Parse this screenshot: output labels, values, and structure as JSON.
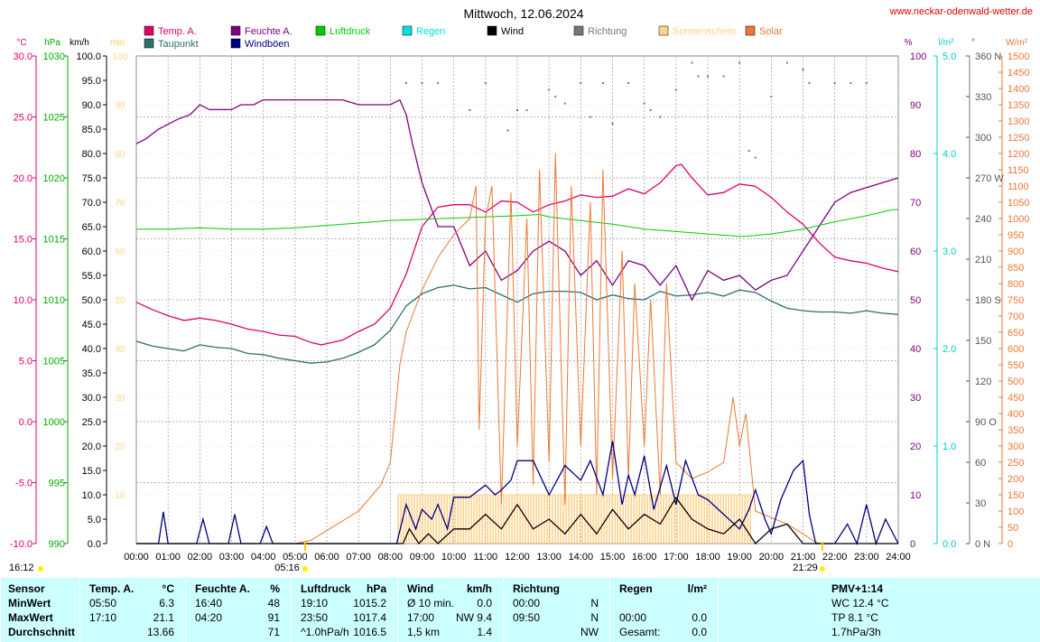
{
  "header": {
    "title": "Mittwoch, 12.06.2024",
    "site": "www.neckar-odenwald-wetter.de"
  },
  "legend": [
    {
      "label": "Temp. A.",
      "color": "#e0006a"
    },
    {
      "label": "Taupunkt",
      "color": "#2e6e6e"
    },
    {
      "label": "Feuchte A.",
      "color": "#800080"
    },
    {
      "label": "Windböen",
      "color": "#000080"
    },
    {
      "label": "Luftdruck",
      "color": "#00cc00"
    },
    {
      "label": "Regen",
      "color": "#00e0e0"
    },
    {
      "label": "Wind",
      "color": "#000000"
    },
    {
      "label": "Richtung",
      "color": "#777777"
    },
    {
      "label": "Sonnenschein",
      "color": "#ffd28a"
    },
    {
      "label": "Solar",
      "color": "#ee7733"
    }
  ],
  "axes": {
    "left_units": [
      "°C",
      "hPa",
      "km/h",
      "min"
    ],
    "right_units": [
      "%",
      "l/m²",
      "°",
      "W/m²"
    ],
    "temp_ticks": [
      "30.0",
      "25.0",
      "20.0",
      "15.0",
      "10.0",
      "5.0",
      "0.0",
      "-5.0",
      "-10.0"
    ],
    "press_ticks": [
      "1030",
      "1025",
      "1020",
      "1015",
      "1010",
      "1005",
      "1000",
      "995",
      "990"
    ],
    "kmh_ticks": [
      "100.0",
      "95.0",
      "90.0",
      "85.0",
      "80.0",
      "75.0",
      "70.0",
      "65.0",
      "60.0",
      "55.0",
      "50.0",
      "45.0",
      "40.0",
      "35.0",
      "30.0",
      "25.0",
      "20.0",
      "15.0",
      "10.0",
      "5.0",
      "0.0"
    ],
    "min_ticks": [
      "100",
      "90",
      "80",
      "70",
      "60",
      "50",
      "40",
      "30",
      "20",
      "10"
    ],
    "pct_ticks": [
      "100",
      "90",
      "80",
      "70",
      "60",
      "50",
      "40",
      "30",
      "20",
      "10",
      "0"
    ],
    "rain_ticks": [
      "5.0",
      "4.0",
      "3.0",
      "2.0",
      "1.0",
      "0.0"
    ],
    "dir_ticks": [
      "360 N",
      "330",
      "300",
      "270 W",
      "240",
      "210",
      "180 S",
      "150",
      "120",
      "90 O",
      "60",
      "30",
      "0 N"
    ],
    "solar_ticks": [
      "1500",
      "1450",
      "1400",
      "1350",
      "1300",
      "1250",
      "1200",
      "1150",
      "1100",
      "1050",
      "1000",
      "950",
      "900",
      "850",
      "800",
      "750",
      "700",
      "650",
      "600",
      "550",
      "500",
      "450",
      "400",
      "350",
      "300",
      "250",
      "200",
      "150",
      "100",
      "50",
      "0"
    ],
    "x_ticks": [
      "00:00",
      "01:00",
      "02:00",
      "03:00",
      "04:00",
      "05:00",
      "06:00",
      "07:00",
      "08:00",
      "09:00",
      "10:00",
      "11:00",
      "12:00",
      "13:00",
      "14:00",
      "15:00",
      "16:00",
      "17:00",
      "18:00",
      "19:00",
      "20:00",
      "21:00",
      "22:00",
      "23:00",
      "24:00"
    ],
    "sunrise": "05:16",
    "sunset": "21:29",
    "clock": "16:12"
  },
  "chart_data": {
    "type": "line",
    "x_unit": "hour of day",
    "xlim": [
      0,
      24
    ],
    "series": [
      {
        "name": "Temp. A.",
        "unit": "°C",
        "ylim": [
          -10,
          30
        ],
        "x": [
          0,
          0.5,
          1,
          1.5,
          2,
          2.5,
          3,
          3.5,
          4,
          4.5,
          5,
          5.5,
          5.83,
          6.5,
          7,
          7.5,
          8,
          8.5,
          9,
          9.5,
          10,
          10.5,
          11,
          11.5,
          12,
          12.5,
          13,
          13.5,
          14,
          14.5,
          15,
          15.5,
          16,
          16.5,
          17,
          17.17,
          17.5,
          18,
          18.5,
          19,
          19.5,
          20,
          20.5,
          21,
          21.5,
          22,
          22.5,
          23,
          23.5,
          24
        ],
        "values": [
          9.8,
          9.2,
          8.7,
          8.3,
          8.5,
          8.3,
          8.0,
          7.6,
          7.4,
          7.1,
          7.0,
          6.5,
          6.3,
          6.7,
          7.4,
          8.0,
          9.3,
          12.1,
          16.0,
          17.6,
          17.8,
          17.8,
          17.2,
          18.1,
          18.0,
          17.2,
          17.8,
          18.1,
          18.6,
          18.4,
          18.5,
          19.1,
          18.7,
          19.6,
          21.0,
          21.1,
          20.0,
          18.6,
          18.8,
          19.5,
          19.3,
          18.4,
          17.2,
          16.2,
          14.7,
          13.5,
          13.2,
          13.0,
          12.6,
          12.3
        ]
      },
      {
        "name": "Taupunkt",
        "unit": "°C",
        "ylim": [
          -10,
          30
        ],
        "x": [
          0,
          0.5,
          1,
          1.5,
          2,
          2.5,
          3,
          3.5,
          4,
          4.5,
          5,
          5.5,
          6,
          6.5,
          7,
          7.5,
          8,
          8.5,
          9,
          9.5,
          10,
          10.5,
          11,
          11.5,
          12,
          12.5,
          13,
          13.5,
          14,
          14.5,
          15,
          15.5,
          16,
          16.5,
          17,
          17.5,
          18,
          18.5,
          19,
          19.5,
          20,
          20.5,
          21,
          21.5,
          22,
          22.5,
          23,
          23.5,
          24
        ],
        "values": [
          6.6,
          6.2,
          6.0,
          5.8,
          6.3,
          6.1,
          6.0,
          5.6,
          5.5,
          5.2,
          5.0,
          4.8,
          4.9,
          5.2,
          5.7,
          6.3,
          7.5,
          9.5,
          10.5,
          11.0,
          11.2,
          10.9,
          11.0,
          10.4,
          9.8,
          10.5,
          10.7,
          10.7,
          10.6,
          10.0,
          10.4,
          10.1,
          10.0,
          10.7,
          10.3,
          10.4,
          10.6,
          10.3,
          10.8,
          10.6,
          9.9,
          9.3,
          9.1,
          9.0,
          9.0,
          8.9,
          9.1,
          8.9,
          8.8
        ]
      },
      {
        "name": "Feuchte A.",
        "unit": "%",
        "ylim": [
          0,
          100
        ],
        "x": [
          0,
          0.3,
          0.7,
          1,
          1.3,
          1.7,
          2,
          2.3,
          2.7,
          3,
          3.3,
          3.7,
          4,
          4.3,
          4.5,
          5,
          5.5,
          6,
          6.5,
          7,
          7.5,
          8,
          8.3,
          8.5,
          8.7,
          9,
          9.5,
          10,
          10.5,
          11,
          11.5,
          12,
          12.5,
          13,
          13.5,
          14,
          14.5,
          15,
          15.5,
          16,
          16.5,
          17,
          17.5,
          18,
          18.5,
          19,
          19.5,
          20,
          20.5,
          21,
          21.5,
          22,
          22.5,
          23,
          23.5,
          24
        ],
        "values": [
          82,
          83,
          85,
          86,
          87,
          88,
          90,
          89,
          89,
          89,
          90,
          90,
          91,
          91,
          91,
          91,
          91,
          91,
          91,
          90,
          90,
          90,
          91,
          88,
          82,
          74,
          65,
          65,
          57,
          60,
          54,
          56,
          60,
          62,
          60,
          55,
          58,
          53,
          58,
          57,
          53,
          57,
          50,
          56,
          54,
          55,
          52,
          54,
          55,
          60,
          65,
          70,
          72,
          73,
          74,
          75
        ]
      },
      {
        "name": "Luftdruck",
        "unit": "hPa",
        "ylim": [
          990,
          1030
        ],
        "x": [
          0,
          1,
          2,
          3,
          4,
          5,
          6,
          7,
          8,
          9,
          10,
          11,
          12,
          12.7,
          13,
          14,
          15,
          16,
          17,
          18,
          19,
          19.17,
          20,
          21,
          22,
          23,
          23.83,
          24
        ],
        "values": [
          1015.8,
          1015.8,
          1015.9,
          1015.8,
          1015.8,
          1015.9,
          1016.1,
          1016.3,
          1016.5,
          1016.6,
          1016.7,
          1016.8,
          1016.9,
          1017.0,
          1016.8,
          1016.5,
          1016.2,
          1015.8,
          1015.6,
          1015.4,
          1015.2,
          1015.2,
          1015.4,
          1015.8,
          1016.4,
          1016.9,
          1017.4,
          1017.4
        ]
      },
      {
        "name": "Solar",
        "unit": "W/m²",
        "ylim": [
          0,
          1500
        ],
        "x": [
          0,
          5,
          5.5,
          6,
          7,
          7.7,
          8,
          8.3,
          8.5,
          9,
          9.5,
          10,
          10.5,
          10.7,
          10.8,
          11,
          11.2,
          11.5,
          11.8,
          12,
          12.3,
          12.5,
          12.7,
          13,
          13.2,
          13.5,
          13.7,
          14,
          14.3,
          14.5,
          14.7,
          15,
          15.3,
          15.5,
          15.7,
          16,
          16.2,
          16.5,
          16.7,
          17,
          17.5,
          18,
          18.5,
          18.8,
          19,
          19.2,
          19.5,
          20,
          20.5,
          21,
          21.3,
          21.5,
          24
        ],
        "values": [
          0,
          0,
          10,
          40,
          100,
          180,
          250,
          550,
          650,
          780,
          880,
          950,
          1000,
          1100,
          350,
          1000,
          1100,
          120,
          1080,
          300,
          1000,
          180,
          1150,
          250,
          1200,
          120,
          1100,
          300,
          1050,
          150,
          1150,
          200,
          900,
          200,
          800,
          300,
          750,
          150,
          800,
          250,
          200,
          220,
          250,
          450,
          300,
          400,
          100,
          80,
          60,
          30,
          10,
          0,
          0
        ]
      },
      {
        "name": "Windböen",
        "unit": "km/h",
        "ylim": [
          0,
          100
        ],
        "x": [
          0,
          0.7,
          0.85,
          1,
          1.9,
          2.1,
          2.3,
          2.9,
          3.1,
          3.3,
          3.9,
          4.1,
          4.3,
          8.2,
          8.5,
          8.8,
          9,
          9.3,
          9.5,
          9.8,
          10,
          10.5,
          11,
          11.3,
          11.5,
          11.8,
          12,
          12.5,
          13,
          13.5,
          14,
          14.3,
          14.7,
          15,
          15.3,
          15.5,
          15.7,
          16,
          16.3,
          16.7,
          17,
          17.3,
          17.7,
          18,
          18.5,
          19,
          19.3,
          19.5,
          19.8,
          20,
          20.3,
          20.7,
          21,
          21.2,
          21.4,
          21.6,
          22,
          22.4,
          22.7,
          23,
          23.3,
          23.6,
          24
        ],
        "values": [
          0,
          0,
          6.5,
          0,
          0,
          5,
          0,
          0,
          6,
          0,
          0,
          3.5,
          0,
          0,
          8,
          3,
          7,
          5,
          8,
          3,
          9.5,
          9.5,
          12,
          10,
          11,
          13,
          17,
          17,
          10,
          16,
          13,
          17,
          10,
          21,
          8,
          14,
          10,
          18,
          7,
          16,
          8,
          17,
          10,
          9,
          6,
          3,
          7,
          11,
          5,
          2,
          9,
          15,
          17,
          6,
          0,
          0,
          0,
          4,
          0,
          8,
          0,
          5,
          0
        ]
      },
      {
        "name": "Wind",
        "unit": "km/h",
        "ylim": [
          0,
          100
        ],
        "x": [
          0,
          8.4,
          8.6,
          8.9,
          9.2,
          9.5,
          10,
          10.5,
          11,
          11.5,
          12,
          12.5,
          13,
          13.5,
          14,
          14.5,
          15,
          15.5,
          16,
          16.5,
          17,
          17.5,
          18,
          18.5,
          19,
          19.5,
          20,
          20.5,
          21,
          21.5,
          24
        ],
        "values": [
          0,
          0,
          3,
          0,
          2,
          0,
          3,
          3,
          6,
          3,
          8,
          3,
          5,
          2,
          6,
          2,
          7,
          3,
          6,
          4,
          9.4,
          5,
          3,
          2,
          5,
          0,
          3,
          4,
          0,
          0,
          0
        ]
      },
      {
        "name": "Sonnenschein",
        "unit": "min",
        "ylim": [
          0,
          100
        ],
        "x": [
          8.25,
          8.25,
          19.4,
          19.4
        ],
        "values": [
          0,
          10,
          10,
          0
        ]
      }
    ],
    "direction_points": {
      "unit": "°",
      "ylim": [
        0,
        360
      ],
      "x": [
        8.5,
        9,
        9.5,
        10.5,
        11,
        11.7,
        12,
        12.3,
        13,
        13.2,
        13.5,
        14,
        14.3,
        14.7,
        15,
        15.5,
        16,
        16.2,
        16.5,
        17,
        17.5,
        17.7,
        18,
        18.5,
        19,
        19.3,
        19.5,
        20,
        20.5,
        21,
        21.2,
        22,
        22.5,
        23
      ],
      "values": [
        340,
        340,
        340,
        320,
        340,
        305,
        320,
        320,
        335,
        330,
        325,
        340,
        315,
        340,
        310,
        340,
        325,
        320,
        315,
        335,
        355,
        345,
        345,
        345,
        355,
        290,
        285,
        330,
        355,
        350,
        340,
        340,
        340,
        340
      ]
    }
  },
  "table": {
    "cols": [
      {
        "rows": [
          "Sensor",
          "MinWert",
          "MaxWert",
          "Durchschnitt"
        ]
      },
      {
        "rows": [
          "Temp. A.",
          "05:50",
          "17:10",
          ""
        ],
        "vals": [
          "°C",
          "6.3",
          "21.1",
          "13.66"
        ]
      },
      {
        "rows": [
          "Feuchte A.",
          "16:40",
          "04:20",
          ""
        ],
        "vals": [
          "%",
          "48",
          "91",
          "71"
        ]
      },
      {
        "rows": [
          "Luftdruck",
          "19:10",
          "23:50",
          "^1.0hPa/h"
        ],
        "vals": [
          "hPa",
          "1015.2",
          "1017.4",
          "1016.5"
        ]
      },
      {
        "rows": [
          "Wind",
          "Ø 10 min.",
          "17:00",
          "1,5 km"
        ],
        "vals": [
          "km/h",
          "0.0",
          "NW 9.4",
          "1.4"
        ]
      },
      {
        "rows": [
          "Richtung",
          "00:00",
          "09:50",
          ""
        ],
        "vals": [
          "",
          "N",
          "N",
          "NW"
        ]
      },
      {
        "rows": [
          "Regen",
          "",
          "00:00",
          "Gesamt:"
        ],
        "vals": [
          "l/m²",
          "",
          "0.0",
          "0.0"
        ]
      },
      {
        "rows": [
          "",
          "",
          "",
          ""
        ],
        "vals": [
          "PMV+1:14",
          "WC 12.4 °C",
          "TP 8.1 °C",
          "1.7hPa/3h"
        ]
      }
    ]
  }
}
